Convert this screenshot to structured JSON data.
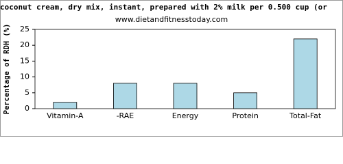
{
  "chart_data": {
    "type": "bar",
    "title": "coconut cream, dry mix, instant, prepared with 2% milk per 0.500 cup (or",
    "subtitle": "www.dietandfitnesstoday.com",
    "y_label": "Percentage of RDH (%)",
    "categories": [
      "Vitamin-A",
      "-RAE",
      "Energy",
      "Protein",
      "Total-Fat"
    ],
    "values": [
      2,
      8,
      8,
      5,
      22
    ],
    "color": "#add8e6",
    "ylim": [
      0,
      25
    ],
    "yticks": [
      0,
      5,
      10,
      15,
      20,
      25
    ],
    "grid": false
  }
}
